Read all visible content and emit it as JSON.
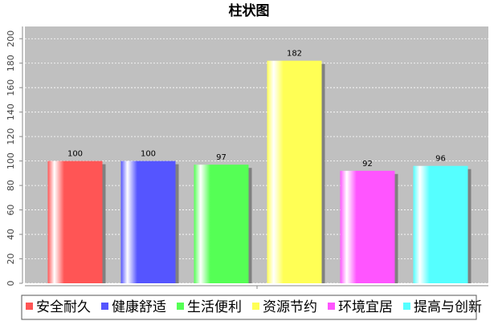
{
  "chart_data": {
    "type": "bar",
    "title": "柱状图",
    "categories": [
      "安全耐久",
      "健康舒适",
      "生活便利",
      "资源节约",
      "环境宜居",
      "提高与创新"
    ],
    "values": [
      100,
      100,
      97,
      182,
      92,
      96
    ],
    "colors": [
      "#ff5555",
      "#5555ff",
      "#55ff55",
      "#ffff55",
      "#ff55ff",
      "#55ffff"
    ],
    "ylim": [
      0,
      210
    ],
    "yticks": [
      0,
      20,
      40,
      60,
      80,
      100,
      120,
      140,
      160,
      180,
      200
    ],
    "grid": true
  }
}
